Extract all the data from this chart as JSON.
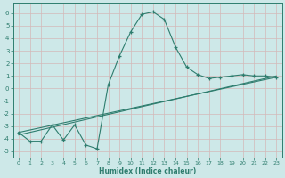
{
  "xlabel": "Humidex (Indice chaleur)",
  "xlim": [
    -0.5,
    23.5
  ],
  "ylim": [
    -5.5,
    6.8
  ],
  "yticks": [
    -5,
    -4,
    -3,
    -2,
    -1,
    0,
    1,
    2,
    3,
    4,
    5,
    6
  ],
  "xticks": [
    0,
    1,
    2,
    3,
    4,
    5,
    6,
    7,
    8,
    9,
    10,
    11,
    12,
    13,
    14,
    15,
    16,
    17,
    18,
    19,
    20,
    21,
    22,
    23
  ],
  "bg_color": "#cde8e8",
  "line_color": "#2e7d6e",
  "grid_color": "#b8d8d8",
  "line1_x": [
    0,
    1,
    2,
    3,
    4,
    5,
    6,
    7,
    8,
    9,
    10,
    11,
    12,
    13,
    14,
    15,
    16,
    17,
    18,
    19,
    20,
    21,
    22,
    23
  ],
  "line1_y": [
    -3.5,
    -4.2,
    -4.2,
    -2.9,
    -4.1,
    -2.9,
    -4.5,
    -4.8,
    0.3,
    2.6,
    4.5,
    5.9,
    6.1,
    5.5,
    3.3,
    1.7,
    1.1,
    0.8,
    0.9,
    1.0,
    1.1,
    1.0,
    1.0,
    0.9
  ],
  "line2_x": [
    0,
    23
  ],
  "line2_y": [
    -3.5,
    0.9
  ],
  "line3_x": [
    0,
    23
  ],
  "line3_y": [
    -3.7,
    1.0
  ]
}
